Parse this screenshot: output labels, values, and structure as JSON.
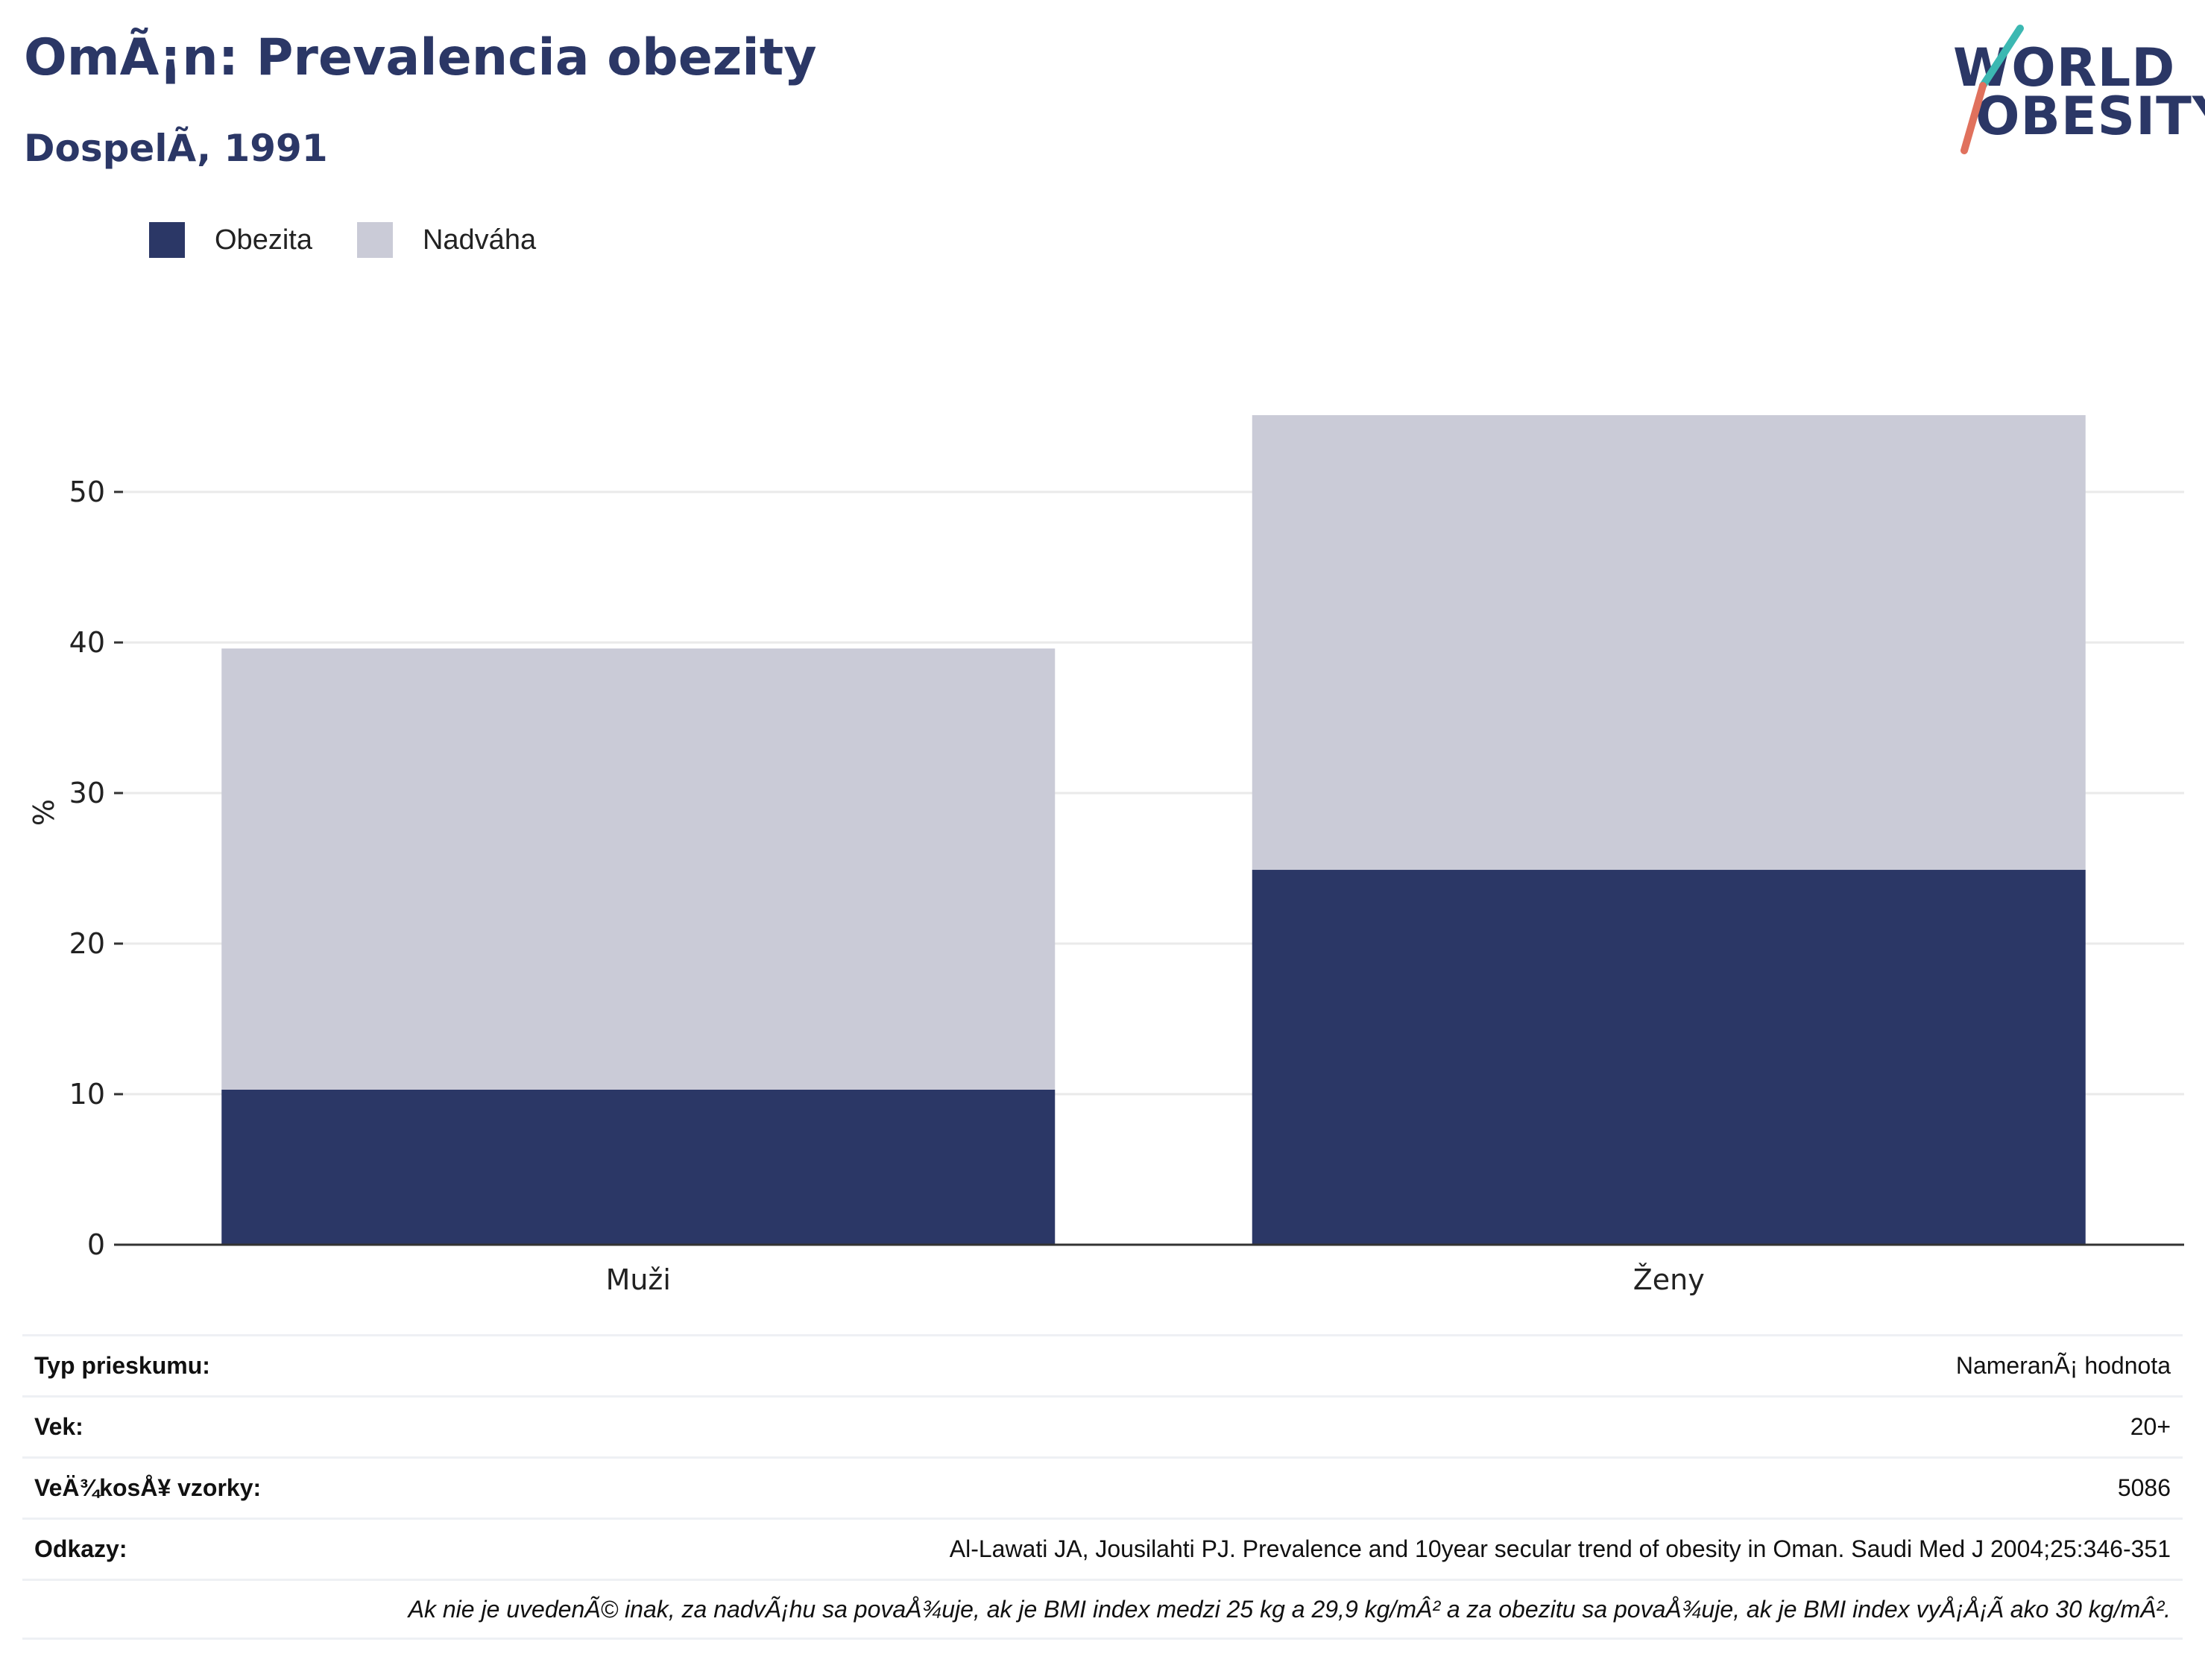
{
  "header": {
    "title": "OmÃ¡n: Prevalencia obezity",
    "subtitle": "DospelÃ, 1991"
  },
  "logo": {
    "line1": "WORLD",
    "line2": "OBESITY"
  },
  "colors": {
    "obezita": "#2b3766",
    "nadvaha": "#cacbd7",
    "grid": "#eaeaea"
  },
  "legend": [
    {
      "label": "Obezita",
      "color": "#2b3766"
    },
    {
      "label": "Nadváha",
      "color": "#cacbd7"
    }
  ],
  "chart_data": {
    "type": "bar",
    "stacked": true,
    "categories": [
      "Muži",
      "Ženy"
    ],
    "series": [
      {
        "name": "Obezita",
        "values": [
          10.3,
          24.9
        ]
      },
      {
        "name": "Nadváha",
        "values": [
          29.3,
          30.2
        ]
      }
    ],
    "ylabel": "%",
    "ylim": [
      0,
      60
    ],
    "yticks": [
      0,
      10,
      20,
      30,
      40,
      50
    ],
    "grid": true,
    "legend_position": "top-left"
  },
  "meta": [
    {
      "key": "Typ prieskumu:",
      "value": "NameranÃ¡ hodnota"
    },
    {
      "key": "Vek:",
      "value": "20+"
    },
    {
      "key": "VeÄ¾kosÅ¥ vzorky:",
      "value": "5086"
    },
    {
      "key": "Odkazy:",
      "value": "Al-Lawati JA, Jousilahti PJ. Prevalence and 10year secular trend of obesity in Oman. Saudi Med J 2004;25:346-351"
    }
  ],
  "note": "Ak nie je uvedenÃ© inak, za nadvÃ¡hu sa povaÅ¾uje, ak je BMI index medzi 25 kg a 29,9 kg/mÂ² a za obezitu sa povaÅ¾uje, ak je BMI index vyÅ¡Å¡Ã ako 30 kg/mÂ²."
}
